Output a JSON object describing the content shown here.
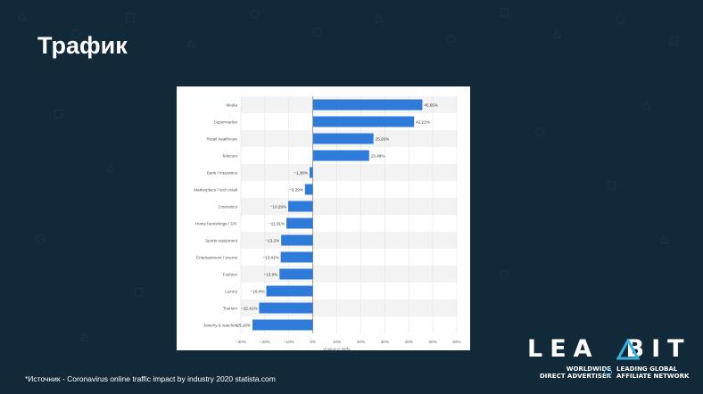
{
  "slide": {
    "title": "Трафик",
    "source": "*Источник - Coronavirus online traffic impact by industry 2020 statista.com"
  },
  "logo": {
    "word_left": "LEA",
    "word_right": "BIT",
    "tag_left_1": "WORLDWIDE",
    "tag_left_2": "DIRECT ADVERTISER",
    "tag_right_1": "LEADING GLOBAL",
    "tag_right_2": "AFFILIATE NETWORK",
    "accent_color": "#3ab0e0"
  },
  "colors": {
    "background": "#12293a",
    "bar": "#2f7bd9"
  },
  "chart_data": {
    "type": "bar",
    "orientation": "horizontal",
    "categories": [
      "Media",
      "Supermarket",
      "Retail healthcare",
      "Telecom",
      "Bank / insurance",
      "Marketplace / tech retail",
      "Cosmetics",
      "Home furnishings / DIY",
      "Sports equipment",
      "Entertainment / events",
      "Fashion",
      "Luxury",
      "Tourism",
      "Jewelry & watches"
    ],
    "values": [
      45.65,
      42.21,
      25.26,
      23.49,
      -1.36,
      -3.29,
      -10.29,
      -11.01,
      -13.2,
      -13.41,
      -13.9,
      -19.4,
      -22.41,
      -25.16
    ],
    "value_labels": [
      "45.65%",
      "42.21%",
      "25.26%",
      "23.49%",
      "−1.36%",
      "−3.29%",
      "−10.29%",
      "−11.01%",
      "−13.2%",
      "−13.41%",
      "−13.9%",
      "−19.4%",
      "−22.41%",
      "−25.16%"
    ],
    "x_ticks": [
      "−30%",
      "−20%",
      "−10%",
      "0%",
      "10%",
      "20%",
      "30%",
      "40%",
      "50%",
      "60%"
    ],
    "x_tick_values": [
      -30,
      -20,
      -10,
      0,
      10,
      20,
      30,
      40,
      50,
      60
    ],
    "xlabel": "Change in traffic",
    "xlim": [
      -30,
      60
    ],
    "grid": true
  }
}
